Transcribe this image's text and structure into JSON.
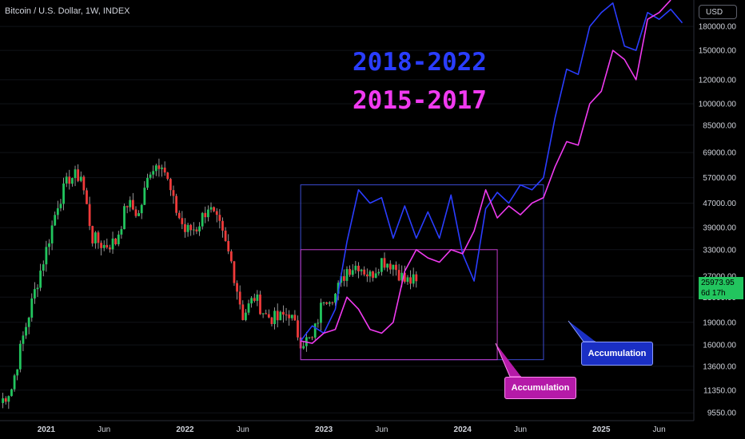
{
  "header": {
    "symbol": "Bitcoin / U.S. Dollar, 1W, INDEX",
    "currency": "USD"
  },
  "current_price": {
    "value": "25973.95",
    "countdown": "6d 17h"
  },
  "annotations": {
    "label_2018": "2018-2022",
    "label_2015": "2015-2017",
    "callout_blue": "Accumulation",
    "callout_pink": "Accumulation"
  },
  "colors": {
    "up": "#22c55e",
    "down": "#ef3a3a",
    "fractal_2018": "#2a3dff",
    "fractal_2015": "#f03af0",
    "box_line": "#3b4bd0",
    "box_line_pink": "#c13ac9"
  },
  "chart_data": {
    "type": "candlestick",
    "title": "Bitcoin / U.S. Dollar, 1W, INDEX",
    "y_scale": "log",
    "ylim": [
      9000,
      220000
    ],
    "y_ticks": [
      9550,
      11350,
      13600,
      16000,
      19000,
      23000,
      27000,
      33000,
      39000,
      47000,
      57000,
      69000,
      85000,
      100000,
      120000,
      150000,
      180000
    ],
    "x_ticks": [
      "2021",
      "Jun",
      "2022",
      "Jun",
      "2023",
      "Jun",
      "2024",
      "Jun",
      "2025",
      "Jun"
    ],
    "x_range": [
      "2020-09",
      "2025-09"
    ],
    "price_path": [
      [
        "2020-09",
        10300
      ],
      [
        "2020-10",
        11500
      ],
      [
        "2020-11",
        17000
      ],
      [
        "2020-12",
        24000
      ],
      [
        "2021-01",
        33000
      ],
      [
        "2021-02",
        47000
      ],
      [
        "2021-03",
        57000
      ],
      [
        "2021-04",
        58000
      ],
      [
        "2021-05",
        36000
      ],
      [
        "2021-06",
        34000
      ],
      [
        "2021-07",
        35000
      ],
      [
        "2021-08",
        47000
      ],
      [
        "2021-09",
        43000
      ],
      [
        "2021-10",
        61000
      ],
      [
        "2021-11",
        65000
      ],
      [
        "2021-12",
        47000
      ],
      [
        "2022-01",
        38000
      ],
      [
        "2022-02",
        39000
      ],
      [
        "2022-03",
        46000
      ],
      [
        "2022-04",
        39000
      ],
      [
        "2022-05",
        30000
      ],
      [
        "2022-06",
        20000
      ],
      [
        "2022-07",
        23000
      ],
      [
        "2022-08",
        20000
      ],
      [
        "2022-09",
        19400
      ],
      [
        "2022-10",
        20500
      ],
      [
        "2022-11",
        16500
      ],
      [
        "2022-12",
        16600
      ],
      [
        "2023-01",
        23000
      ],
      [
        "2023-02",
        23500
      ],
      [
        "2023-03",
        28500
      ],
      [
        "2023-04",
        29500
      ],
      [
        "2023-05",
        27000
      ],
      [
        "2023-06",
        30500
      ],
      [
        "2023-07",
        29500
      ],
      [
        "2023-08",
        26000
      ],
      [
        "2023-09",
        25974
      ]
    ],
    "series": [
      {
        "name": "2018-2022",
        "points": [
          [
            "2022-11",
            16500
          ],
          [
            "2022-12",
            18500
          ],
          [
            "2023-01",
            17500
          ],
          [
            "2023-02",
            21000
          ],
          [
            "2023-03",
            35000
          ],
          [
            "2023-04",
            52000
          ],
          [
            "2023-05",
            47000
          ],
          [
            "2023-06",
            49000
          ],
          [
            "2023-07",
            36000
          ],
          [
            "2023-08",
            46000
          ],
          [
            "2023-09",
            36000
          ],
          [
            "2023-10",
            44000
          ],
          [
            "2023-11",
            36000
          ],
          [
            "2023-12",
            50000
          ],
          [
            "2024-01",
            32000
          ],
          [
            "2024-02",
            26000
          ],
          [
            "2024-03",
            45000
          ],
          [
            "2024-04",
            51000
          ],
          [
            "2024-05",
            47000
          ],
          [
            "2024-06",
            54000
          ],
          [
            "2024-07",
            52000
          ],
          [
            "2024-08",
            57000
          ],
          [
            "2024-09",
            90000
          ],
          [
            "2024-10",
            130000
          ],
          [
            "2024-11",
            125000
          ],
          [
            "2024-12",
            180000
          ],
          [
            "2025-01",
            200000
          ],
          [
            "2025-02",
            215000
          ],
          [
            "2025-03",
            155000
          ],
          [
            "2025-04",
            150000
          ],
          [
            "2025-05",
            200000
          ],
          [
            "2025-06",
            190000
          ],
          [
            "2025-07",
            205000
          ],
          [
            "2025-08",
            185000
          ]
        ]
      },
      {
        "name": "2015-2017",
        "points": [
          [
            "2022-11",
            16500
          ],
          [
            "2022-12",
            16200
          ],
          [
            "2023-01",
            17500
          ],
          [
            "2023-02",
            18000
          ],
          [
            "2023-03",
            23000
          ],
          [
            "2023-04",
            21000
          ],
          [
            "2023-05",
            18000
          ],
          [
            "2023-06",
            17500
          ],
          [
            "2023-07",
            19000
          ],
          [
            "2023-08",
            28000
          ],
          [
            "2023-09",
            33000
          ],
          [
            "2023-10",
            31000
          ],
          [
            "2023-11",
            30000
          ],
          [
            "2023-12",
            33000
          ],
          [
            "2024-01",
            32000
          ],
          [
            "2024-02",
            38000
          ],
          [
            "2024-03",
            52000
          ],
          [
            "2024-04",
            42000
          ],
          [
            "2024-05",
            46000
          ],
          [
            "2024-06",
            43000
          ],
          [
            "2024-07",
            47000
          ],
          [
            "2024-08",
            49000
          ],
          [
            "2024-09",
            62000
          ],
          [
            "2024-10",
            75000
          ],
          [
            "2024-11",
            73000
          ],
          [
            "2024-12",
            100000
          ],
          [
            "2025-01",
            110000
          ],
          [
            "2025-02",
            150000
          ],
          [
            "2025-03",
            140000
          ],
          [
            "2025-04",
            120000
          ],
          [
            "2025-05",
            190000
          ],
          [
            "2025-06",
            200000
          ],
          [
            "2025-07",
            220000
          ]
        ]
      }
    ],
    "boxes": [
      {
        "name": "2018-2022",
        "x": [
          "2022-11",
          "2024-08"
        ],
        "y": [
          14300,
          54000
        ]
      },
      {
        "name": "2015-2017",
        "x": [
          "2022-11",
          "2024-04"
        ],
        "y": [
          14300,
          33000
        ]
      }
    ]
  }
}
